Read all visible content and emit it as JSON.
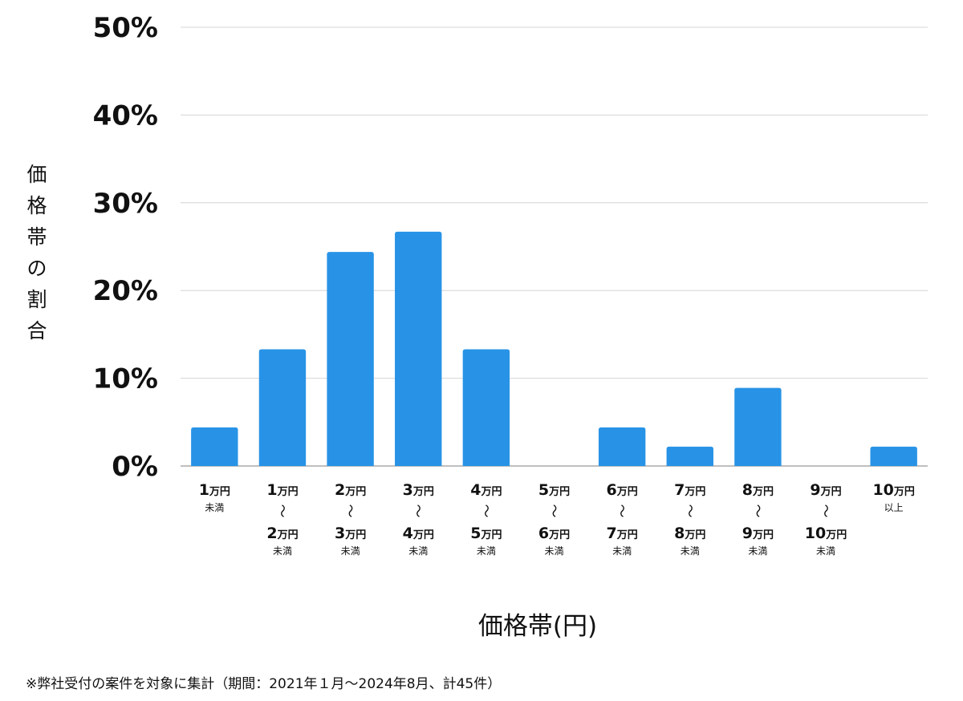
{
  "chart_data": {
    "type": "bar",
    "title": "",
    "xlabel": "価格帯(円)",
    "ylabel": "価格帯の割合",
    "ylim": [
      0,
      50
    ],
    "yticks": [
      "0%",
      "10%",
      "20%",
      "30%",
      "40%",
      "50%"
    ],
    "grid": true,
    "categories": [
      {
        "main": "1",
        "unit": "万円",
        "sub": "未満"
      },
      {
        "main": "1",
        "unit": "万円",
        "range": "〜",
        "main2": "2",
        "unit2": "万円",
        "sub": "未満"
      },
      {
        "main": "2",
        "unit": "万円",
        "range": "〜",
        "main2": "3",
        "unit2": "万円",
        "sub": "未満"
      },
      {
        "main": "3",
        "unit": "万円",
        "range": "〜",
        "main2": "4",
        "unit2": "万円",
        "sub": "未満"
      },
      {
        "main": "4",
        "unit": "万円",
        "range": "〜",
        "main2": "5",
        "unit2": "万円",
        "sub": "未満"
      },
      {
        "main": "5",
        "unit": "万円",
        "range": "〜",
        "main2": "6",
        "unit2": "万円",
        "sub": "未満"
      },
      {
        "main": "6",
        "unit": "万円",
        "range": "〜",
        "main2": "7",
        "unit2": "万円",
        "sub": "未満"
      },
      {
        "main": "7",
        "unit": "万円",
        "range": "〜",
        "main2": "8",
        "unit2": "万円",
        "sub": "未満"
      },
      {
        "main": "8",
        "unit": "万円",
        "range": "〜",
        "main2": "9",
        "unit2": "万円",
        "sub": "未満"
      },
      {
        "main": "9",
        "unit": "万円",
        "range": "〜",
        "main2": "10",
        "unit2": "万円",
        "sub": "未満"
      },
      {
        "main": "10",
        "unit": "万円",
        "sub": "以上"
      }
    ],
    "values": [
      4.4,
      13.3,
      24.4,
      26.7,
      13.3,
      0,
      4.4,
      2.2,
      8.9,
      0,
      2.2
    ],
    "bar_color": "#2893e6",
    "grid_color": "#d4d4d4",
    "axis_color": "#aaaaaa"
  },
  "footnote": "※弊社受付の案件を対象に集計（期間：2021年１月〜2024年8月、計45件）"
}
